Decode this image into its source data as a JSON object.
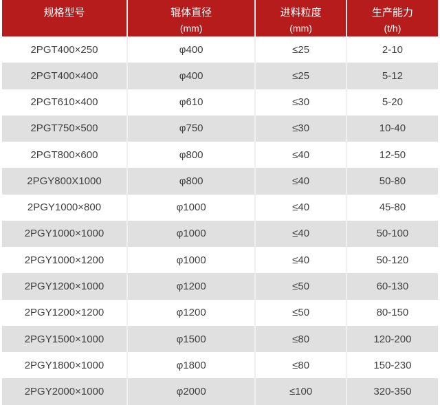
{
  "table": {
    "columns": [
      {
        "label": "规格型号",
        "sub": ""
      },
      {
        "label": "辊体直径",
        "sub": "(mm)"
      },
      {
        "label": "进料粒度",
        "sub": "(mm)"
      },
      {
        "label": "生产能力",
        "sub": "(t/h)"
      }
    ],
    "rows": [
      [
        "2PGT400×250",
        "φ400",
        "≤25",
        "2-10"
      ],
      [
        "2PGT400×400",
        "φ400",
        "≤25",
        "5-12"
      ],
      [
        "2PGT610×400",
        "φ610",
        "≤30",
        "5-20"
      ],
      [
        "2PGT750×500",
        "φ750",
        "≤30",
        "10-40"
      ],
      [
        "2PGT800×600",
        "φ800",
        "≤40",
        "12-50"
      ],
      [
        "2PGY800X1000",
        "φ800",
        "≤40",
        "50-80"
      ],
      [
        "2PGY1000×800",
        "φ1000",
        "≤40",
        "45-80"
      ],
      [
        "2PGY1000×1000",
        "φ1000",
        "≤40",
        "50-100"
      ],
      [
        "2PGY1000×1200",
        "φ1000",
        "≤40",
        "50-120"
      ],
      [
        "2PGY1200×1000",
        "φ1200",
        "≤50",
        "60-130"
      ],
      [
        "2PGY1200×1200",
        "φ1200",
        "≤50",
        "80-150"
      ],
      [
        "2PGY1500×1000",
        "φ1500",
        "≤80",
        "120-200"
      ],
      [
        "2PGY1800×1000",
        "φ1800",
        "≤80",
        "150-230"
      ],
      [
        "2PGY2000×1000",
        "φ2000",
        "≤100",
        "320-350"
      ]
    ]
  },
  "colors": {
    "header_bg": "#b71c1c",
    "header_text": "#ffffff",
    "row_bg": "#ffffff",
    "row_alt_bg": "#e0e0e0",
    "body_text": "#404040",
    "divider": "#efefef"
  }
}
